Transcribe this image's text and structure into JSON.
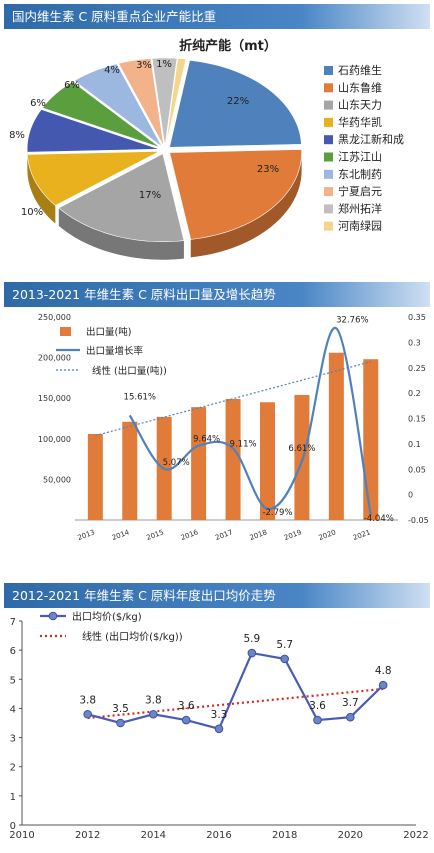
{
  "chart_data": [
    {
      "type": "pie",
      "banner": "国内维生素 C 原料重点企业产能比重",
      "title": "折纯产能（mt）",
      "categories": [
        "石药维生",
        "山东鲁维",
        "山东天力",
        "华药华凯",
        "黑龙江新和成",
        "江苏江山",
        "东北制药",
        "宁夏启元",
        "郑州拓洋",
        "河南绿园"
      ],
      "data_labels": [
        "22%",
        "23%",
        "17%",
        "10%",
        "8%",
        "6%",
        "6%",
        "4%",
        "3%",
        "1%"
      ],
      "values": [
        22,
        23,
        17,
        10,
        8,
        6,
        6,
        4,
        3,
        1
      ],
      "colors": [
        "#4f81bd",
        "#e07b39",
        "#a5a5a5",
        "#e8b11d",
        "#4458b0",
        "#5a9e3e",
        "#9db8e0",
        "#f2b28a",
        "#bfbfbf",
        "#f5d58a"
      ],
      "legend": "right"
    },
    {
      "type": "bar",
      "banner": "2013-2021 年维生素 C 原料出口量及增长趋势",
      "categories": [
        "2013",
        "2014",
        "2015",
        "2016",
        "2017",
        "2018",
        "2019",
        "2020",
        "2021"
      ],
      "series": [
        {
          "name": "出口量(吨)",
          "values": [
            106000,
            121000,
            127000,
            139000,
            149000,
            145000,
            154000,
            206000,
            198000
          ],
          "color": "#e07b39"
        },
        {
          "name": "出口量增长率",
          "values": [
            null,
            0.1561,
            0.0507,
            0.0964,
            0.0911,
            -0.0279,
            0.0661,
            0.3276,
            -0.0404
          ],
          "labels": [
            null,
            "15.61%",
            "5.07%",
            "9.64%",
            "9.11%",
            "-2.79%",
            "6.61%",
            "32.76%",
            "-4.04%"
          ],
          "color": "#4f81bd"
        },
        {
          "name": "线性 (出口量(吨))",
          "color": "#4f81bd"
        }
      ],
      "ylim": [
        0,
        250000
      ],
      "y2lim": [
        -0.05,
        0.35
      ],
      "ytick_labels": [
        "50,000",
        "100,000",
        "150,000",
        "200,000",
        "250,000"
      ],
      "y2tick_labels": [
        "-0.05",
        "0",
        "0.05",
        "0.1",
        "0.15",
        "0.2",
        "0.25",
        "0.3",
        "0.35"
      ],
      "legend": "top-left"
    },
    {
      "type": "line",
      "banner": "2012-2021 年维生素 C 原料年度出口均价走势",
      "x": [
        2012,
        2013,
        2014,
        2015,
        2016,
        2017,
        2018,
        2019,
        2020,
        2021
      ],
      "series": [
        {
          "name": "出口均价($/kg)",
          "values": [
            3.8,
            3.5,
            3.8,
            3.6,
            3.3,
            5.9,
            5.7,
            3.6,
            3.7,
            4.8
          ],
          "color": "#4a5bb3"
        },
        {
          "name": "线性 (出口均价($/kg))",
          "color": "#d42828"
        }
      ],
      "xlim": [
        2010,
        2022
      ],
      "ylim": [
        0,
        7
      ],
      "xtick_labels": [
        "2010",
        "2012",
        "2014",
        "2016",
        "2018",
        "2020",
        "2022"
      ],
      "ytick_labels": [
        "0",
        "1",
        "2",
        "3",
        "4",
        "5",
        "6",
        "7"
      ],
      "legend": "top-left"
    }
  ]
}
